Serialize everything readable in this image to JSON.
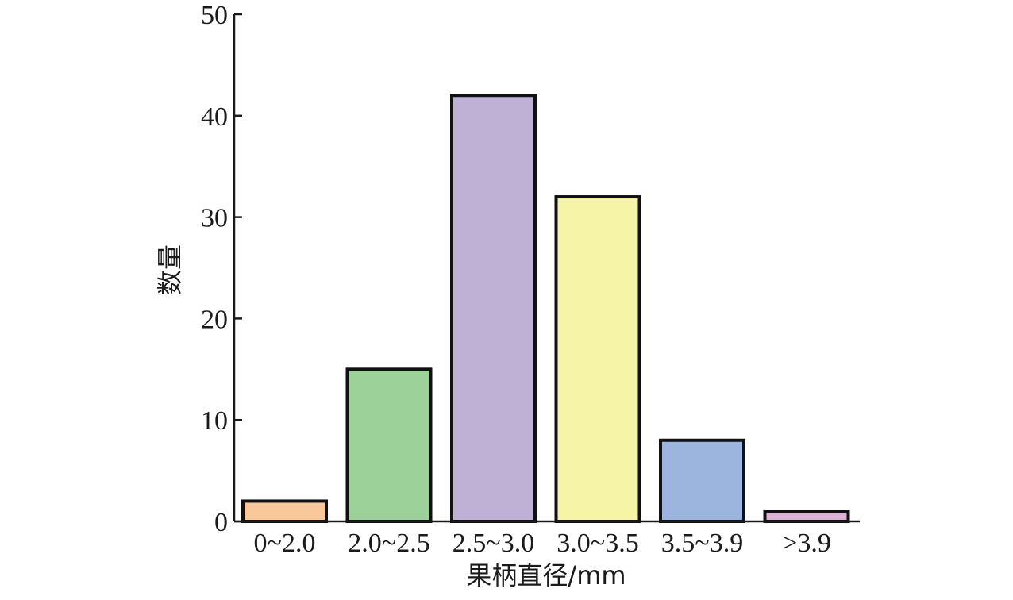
{
  "chart_data": {
    "type": "bar",
    "categories": [
      "0~2.0",
      "2.0~2.5",
      "2.5~3.0",
      "3.0~3.5",
      "3.5~3.9",
      ">3.9"
    ],
    "values": [
      2,
      15,
      42,
      32,
      8,
      1
    ],
    "colors": [
      "#f8c79a",
      "#9dd19a",
      "#bfb0d5",
      "#f6f4a6",
      "#9cb5df",
      "#ddb0d6"
    ],
    "title": "",
    "xlabel": "果柄直径/mm",
    "ylabel": "数量",
    "ylim": [
      0,
      50
    ],
    "yticks": [
      "0",
      "10",
      "20",
      "30",
      "40",
      "50"
    ],
    "grid": false
  }
}
